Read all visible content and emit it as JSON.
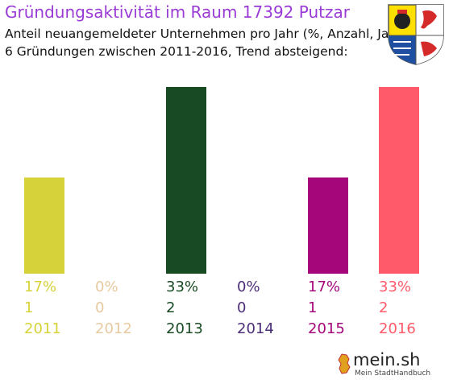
{
  "header": {
    "title": "Gründungsaktivität im Raum 17392 Putzar",
    "subtitle1": "Anteil neuangemeldeter Unternehmen pro Jahr (%, Anzahl, Jahr)",
    "subtitle2": "6 Gründungen zwischen 2011-2016, Trend absteigend:"
  },
  "logo": {
    "main": "mein.sh",
    "sub": "Mein StadtHandbuch"
  },
  "chart_data": {
    "type": "bar",
    "title": "Gründungsaktivität im Raum 17392 Putzar",
    "categories": [
      "2011",
      "2012",
      "2013",
      "2014",
      "2015",
      "2016"
    ],
    "values": [
      17,
      0,
      33,
      0,
      17,
      33
    ],
    "counts": [
      1,
      0,
      2,
      0,
      1,
      2
    ],
    "percent_labels": [
      "17%",
      "0%",
      "33%",
      "0%",
      "17%",
      "33%"
    ],
    "colors": [
      "#d6d33a",
      "#e8c9a0",
      "#184a24",
      "#4b2d7a",
      "#a5067a",
      "#ff5a6a"
    ],
    "ylim": [
      0,
      33
    ],
    "grid": false,
    "legend": "none"
  }
}
